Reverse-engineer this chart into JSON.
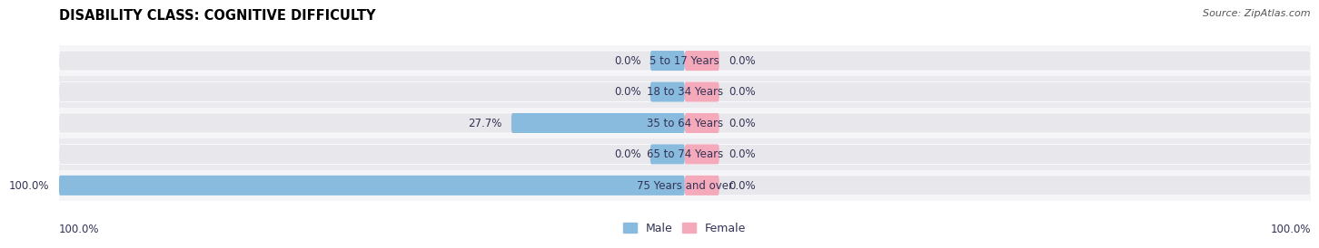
{
  "title": "DISABILITY CLASS: COGNITIVE DIFFICULTY",
  "source": "Source: ZipAtlas.com",
  "categories": [
    "5 to 17 Years",
    "18 to 34 Years",
    "35 to 64 Years",
    "65 to 74 Years",
    "75 Years and over"
  ],
  "male_values": [
    0.0,
    0.0,
    27.7,
    0.0,
    100.0
  ],
  "female_values": [
    0.0,
    0.0,
    0.0,
    0.0,
    0.0
  ],
  "male_color": "#88BBDD",
  "female_color": "#F4AABB",
  "male_label": "Male",
  "female_label": "Female",
  "bar_bg_color": "#E8E8EC",
  "row_bg_even": "#F5F5F8",
  "row_bg_odd": "#EBEBEF",
  "stub_pct": 5.5,
  "max_value": 100.0,
  "title_fontsize": 10.5,
  "label_fontsize": 8.5,
  "source_fontsize": 8,
  "legend_fontsize": 9,
  "bottom_left_label": "100.0%",
  "bottom_right_label": "100.0%",
  "background_color": "#FFFFFF",
  "text_color": "#333355"
}
